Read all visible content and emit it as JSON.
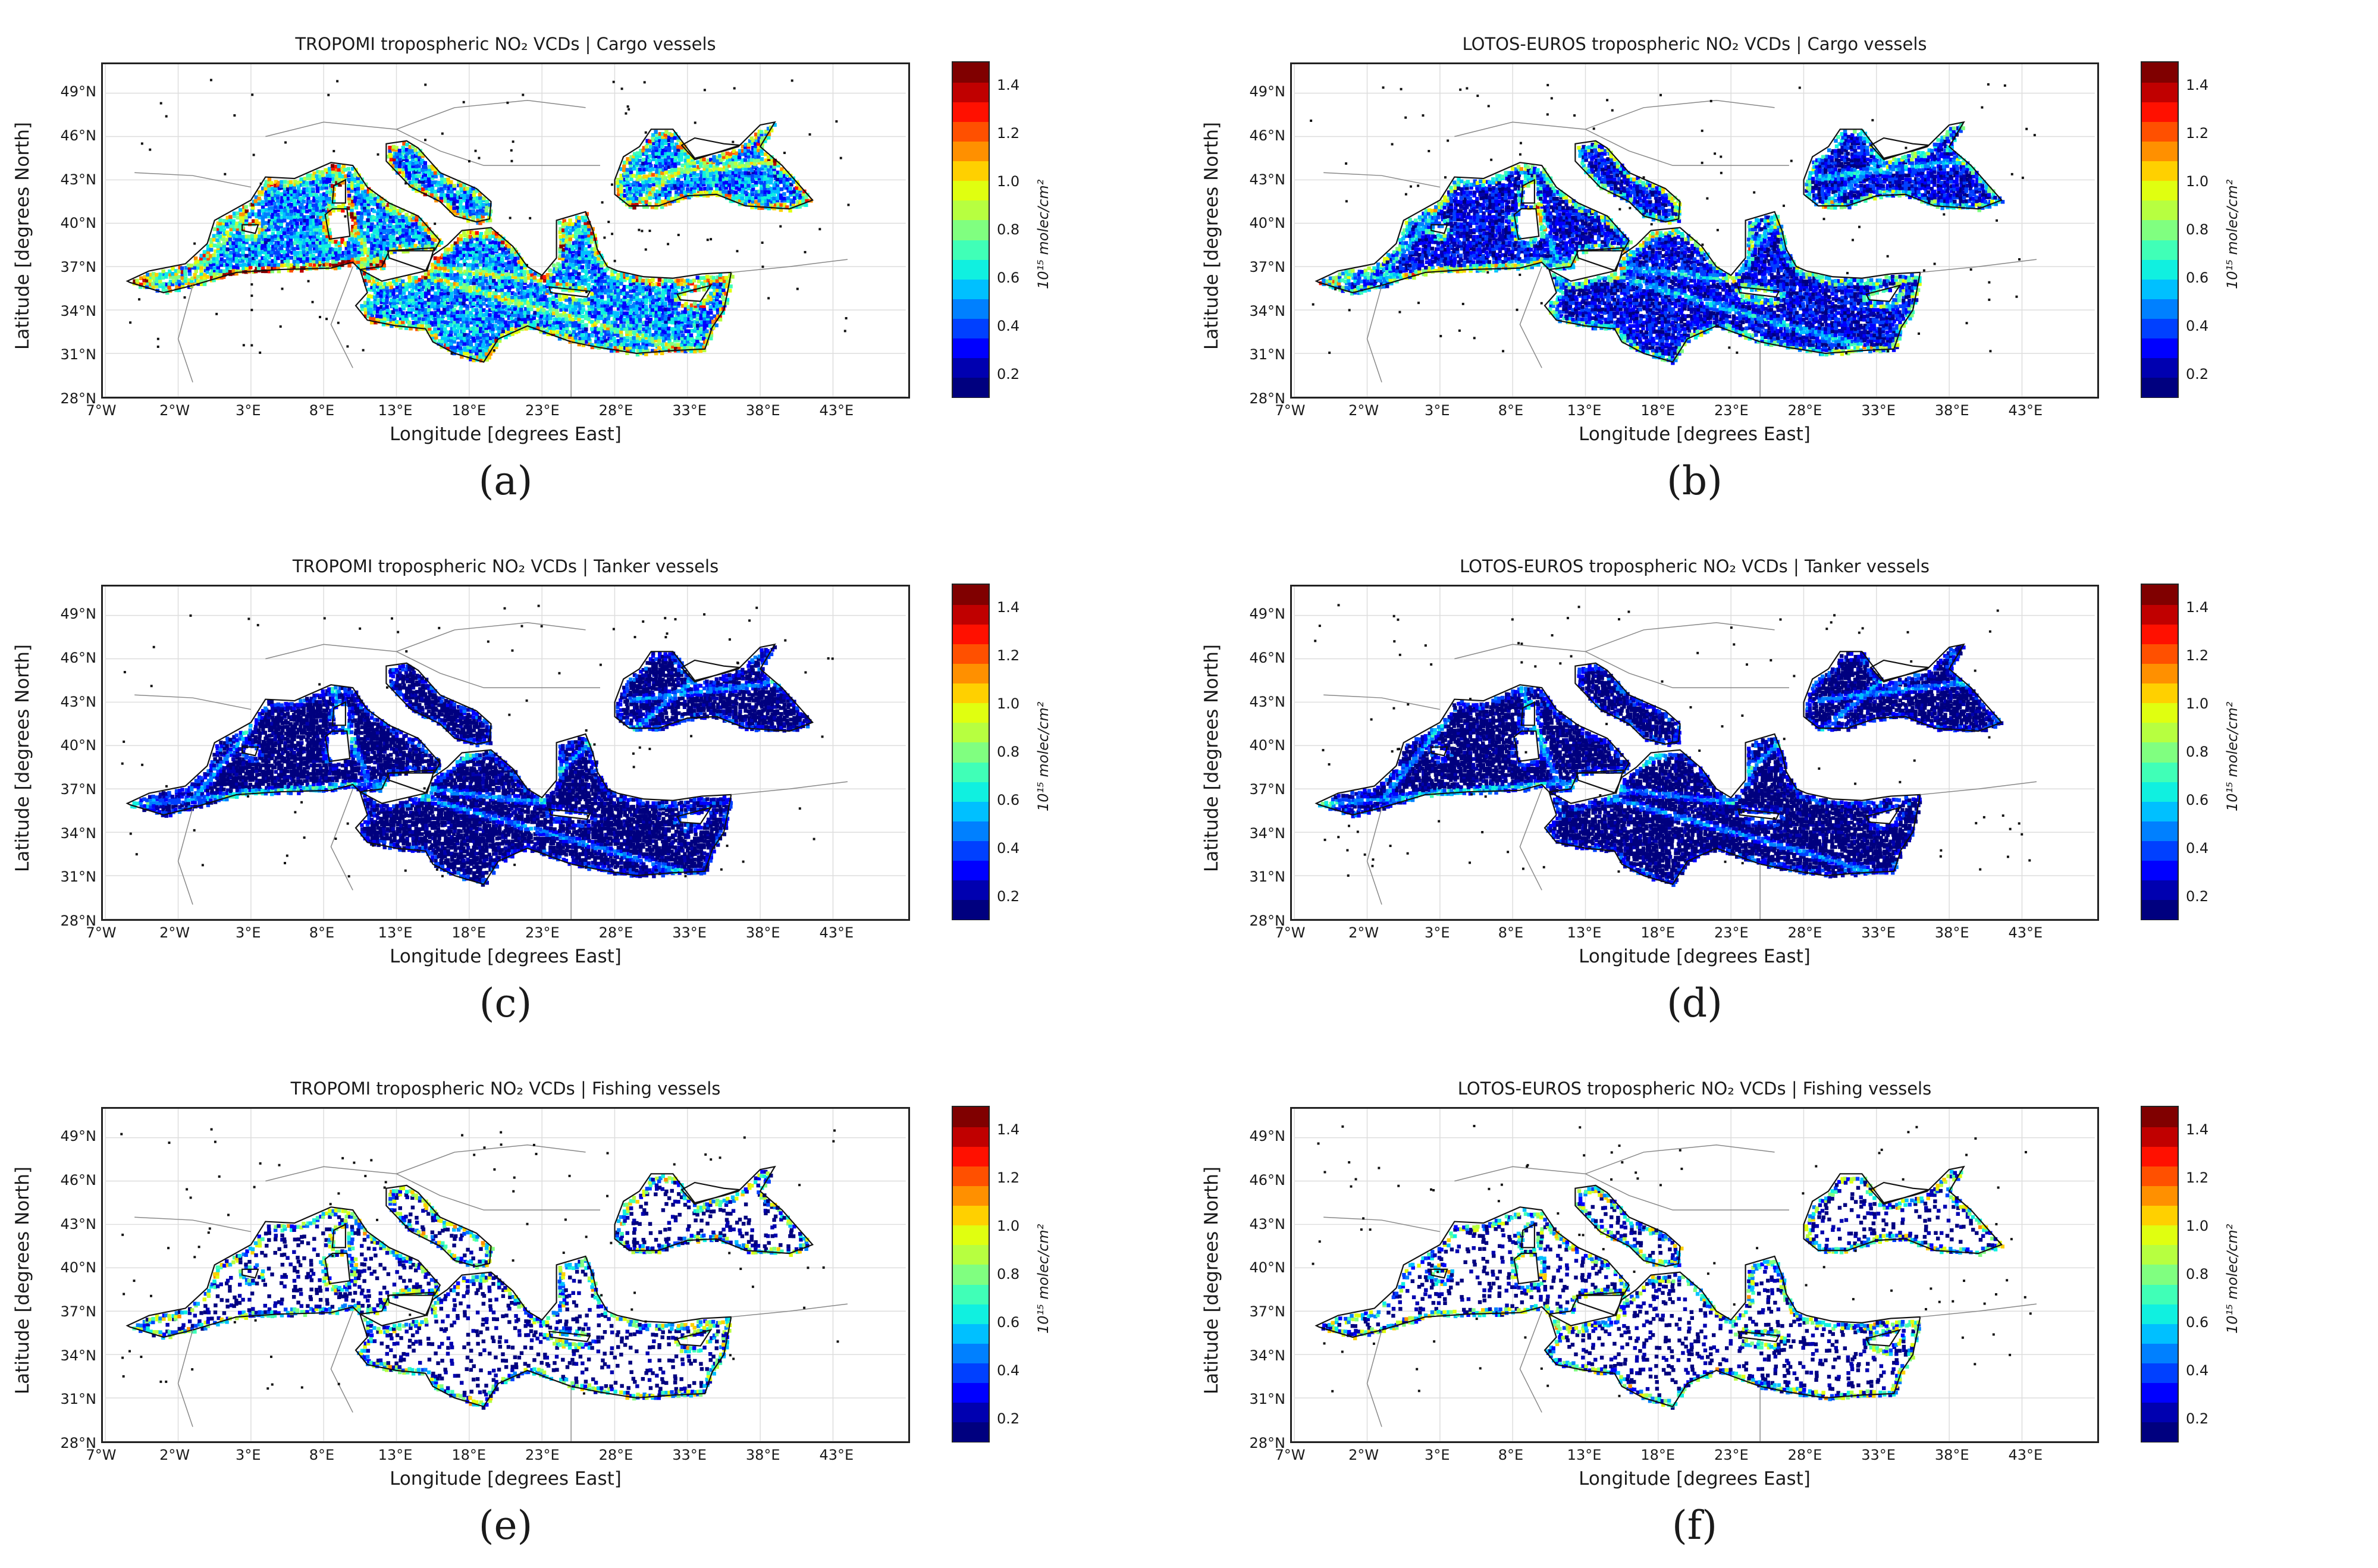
{
  "figure": {
    "xlabel": "Longitude [degrees East]",
    "ylabel": "Latitude [degrees North]",
    "x_ticks": [
      "7°W",
      "2°W",
      "3°E",
      "8°E",
      "13°E",
      "18°E",
      "23°E",
      "28°E",
      "33°E",
      "38°E",
      "43°E"
    ],
    "y_ticks": [
      "49°N",
      "46°N",
      "43°N",
      "40°N",
      "37°N",
      "34°N",
      "31°N",
      "28°N"
    ],
    "colorbar": {
      "ticks": [
        "1.4",
        "1.2",
        "1.0",
        "0.8",
        "0.6",
        "0.4",
        "0.2"
      ],
      "label": "10¹⁵ molec/cm²",
      "colormap": "jet",
      "range": [
        0.1,
        1.5
      ],
      "colors": [
        "#00007f",
        "#0000b0",
        "#0000ff",
        "#0040ff",
        "#0080ff",
        "#00c0ff",
        "#10f0e0",
        "#40ffb7",
        "#80ff80",
        "#b7ff40",
        "#e0ff10",
        "#ffd000",
        "#ff9000",
        "#ff5000",
        "#ff1000",
        "#c00000",
        "#800000"
      ]
    }
  },
  "panels": [
    {
      "id": "a",
      "letter": "(a)",
      "title": "TROPOMI tropospheric NO₂ VCDs  | Cargo vessels",
      "intensity": "high"
    },
    {
      "id": "b",
      "letter": "(b)",
      "title": "LOTOS-EUROS tropospheric NO₂ VCDs  | Cargo vessels",
      "intensity": "medium"
    },
    {
      "id": "c",
      "letter": "(c)",
      "title": "TROPOMI tropospheric NO₂ VCDs  | Tanker vessels",
      "intensity": "low"
    },
    {
      "id": "d",
      "letter": "(d)",
      "title": "LOTOS-EUROS tropospheric NO₂ VCDs  | Tanker vessels",
      "intensity": "low"
    },
    {
      "id": "e",
      "letter": "(e)",
      "title": "TROPOMI tropospheric NO₂ VCDs  | Fishing vessels",
      "intensity": "sparse"
    },
    {
      "id": "f",
      "letter": "(f)",
      "title": "LOTOS-EUROS tropospheric NO₂ VCDs  | Fishing vessels",
      "intensity": "sparse"
    }
  ]
}
